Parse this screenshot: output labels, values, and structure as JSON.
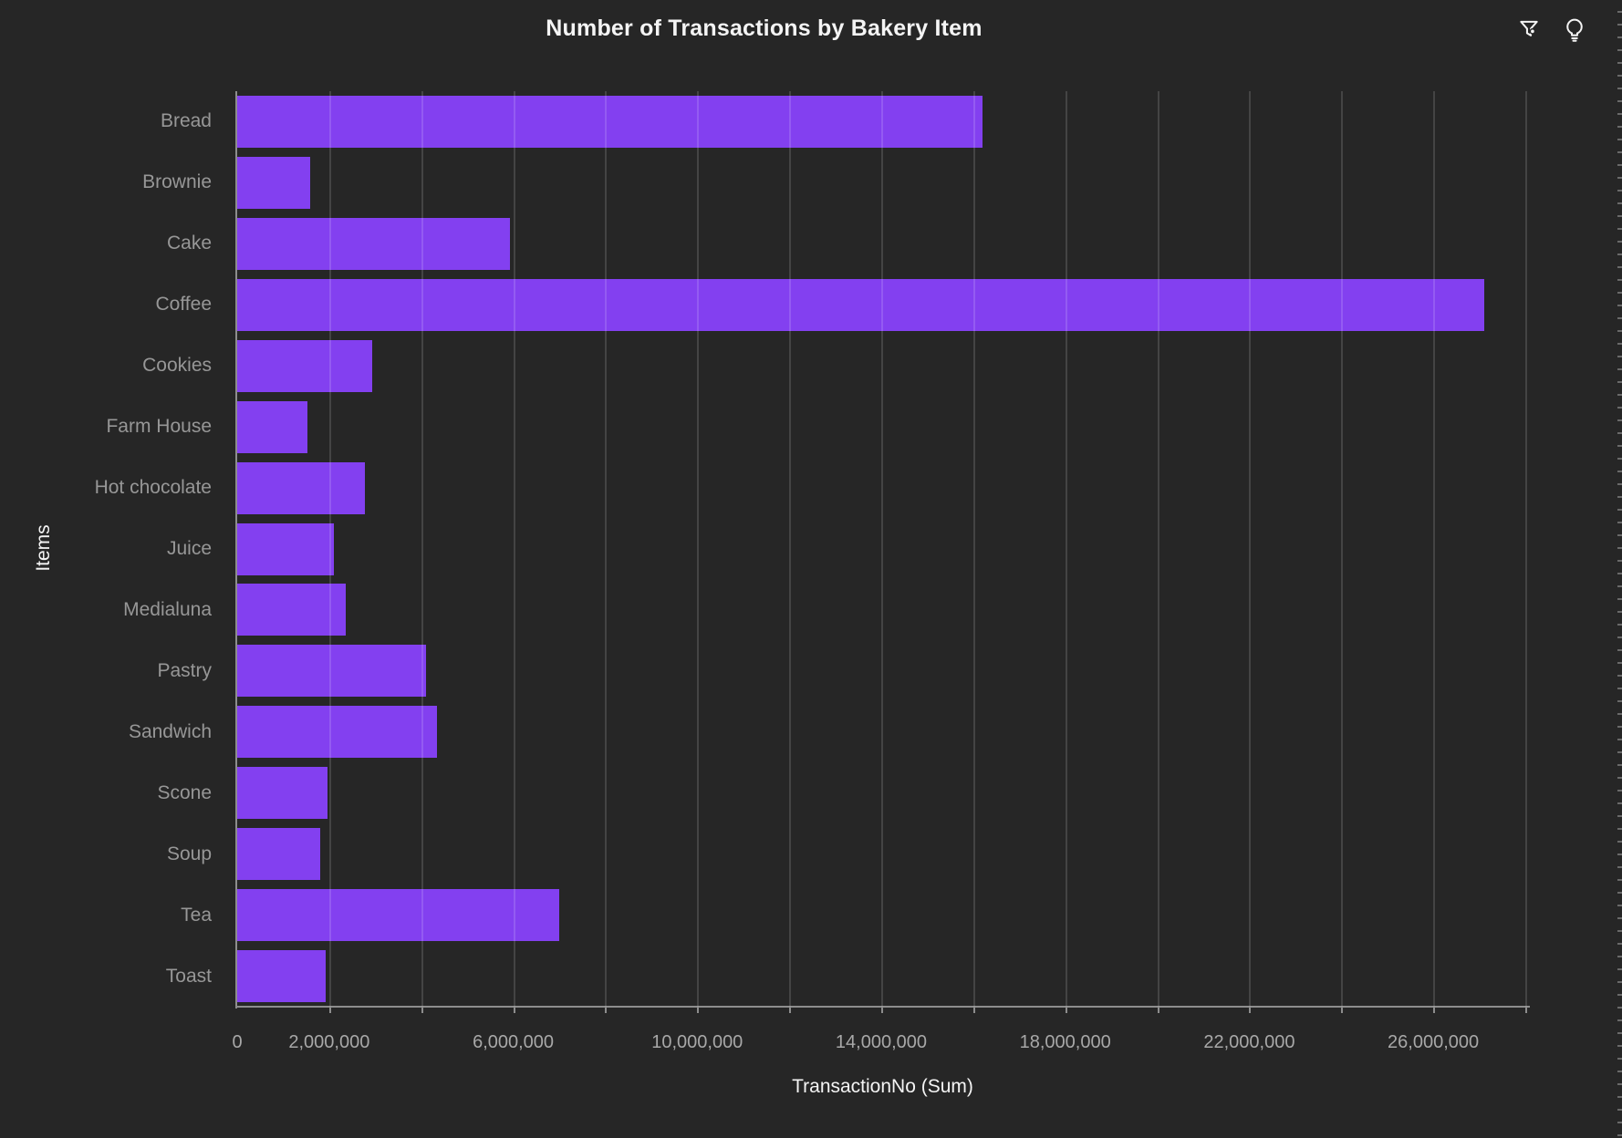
{
  "header": {
    "icons": [
      {
        "name": "filter-icon"
      },
      {
        "name": "lightbulb-icon"
      }
    ]
  },
  "chart_data": {
    "type": "bar",
    "orientation": "horizontal",
    "title": "Number of Transactions by Bakery Item",
    "xlabel": "TransactionNo (Sum)",
    "ylabel": "Items",
    "categories": [
      "Bread",
      "Brownie",
      "Cake",
      "Coffee",
      "Cookies",
      "Farm House",
      "Hot chocolate",
      "Juice",
      "Medialuna",
      "Pastry",
      "Sandwich",
      "Scone",
      "Soup",
      "Tea",
      "Toast"
    ],
    "values": [
      16200000,
      1590000,
      5930000,
      27100000,
      2930000,
      1530000,
      2780000,
      2100000,
      2360000,
      4100000,
      4340000,
      1960000,
      1800000,
      7000000,
      1920000
    ],
    "xlim": [
      0,
      28060000
    ],
    "gridline_interval": 2000000,
    "grid": "vertical",
    "legend": "none",
    "x_ticks": [
      {
        "value": 0,
        "label": "0"
      },
      {
        "value": 2000000,
        "label": "2,000,000"
      },
      {
        "value": 6000000,
        "label": "6,000,000"
      },
      {
        "value": 10000000,
        "label": "10,000,000"
      },
      {
        "value": 14000000,
        "label": "14,000,000"
      },
      {
        "value": 18000000,
        "label": "18,000,000"
      },
      {
        "value": 22000000,
        "label": "22,000,000"
      },
      {
        "value": 26000000,
        "label": "26,000,000"
      }
    ],
    "bar_color": "#8340f0",
    "background_color": "#262626",
    "text_color": "#f4f4f4",
    "axis_label_color": "#979797"
  }
}
